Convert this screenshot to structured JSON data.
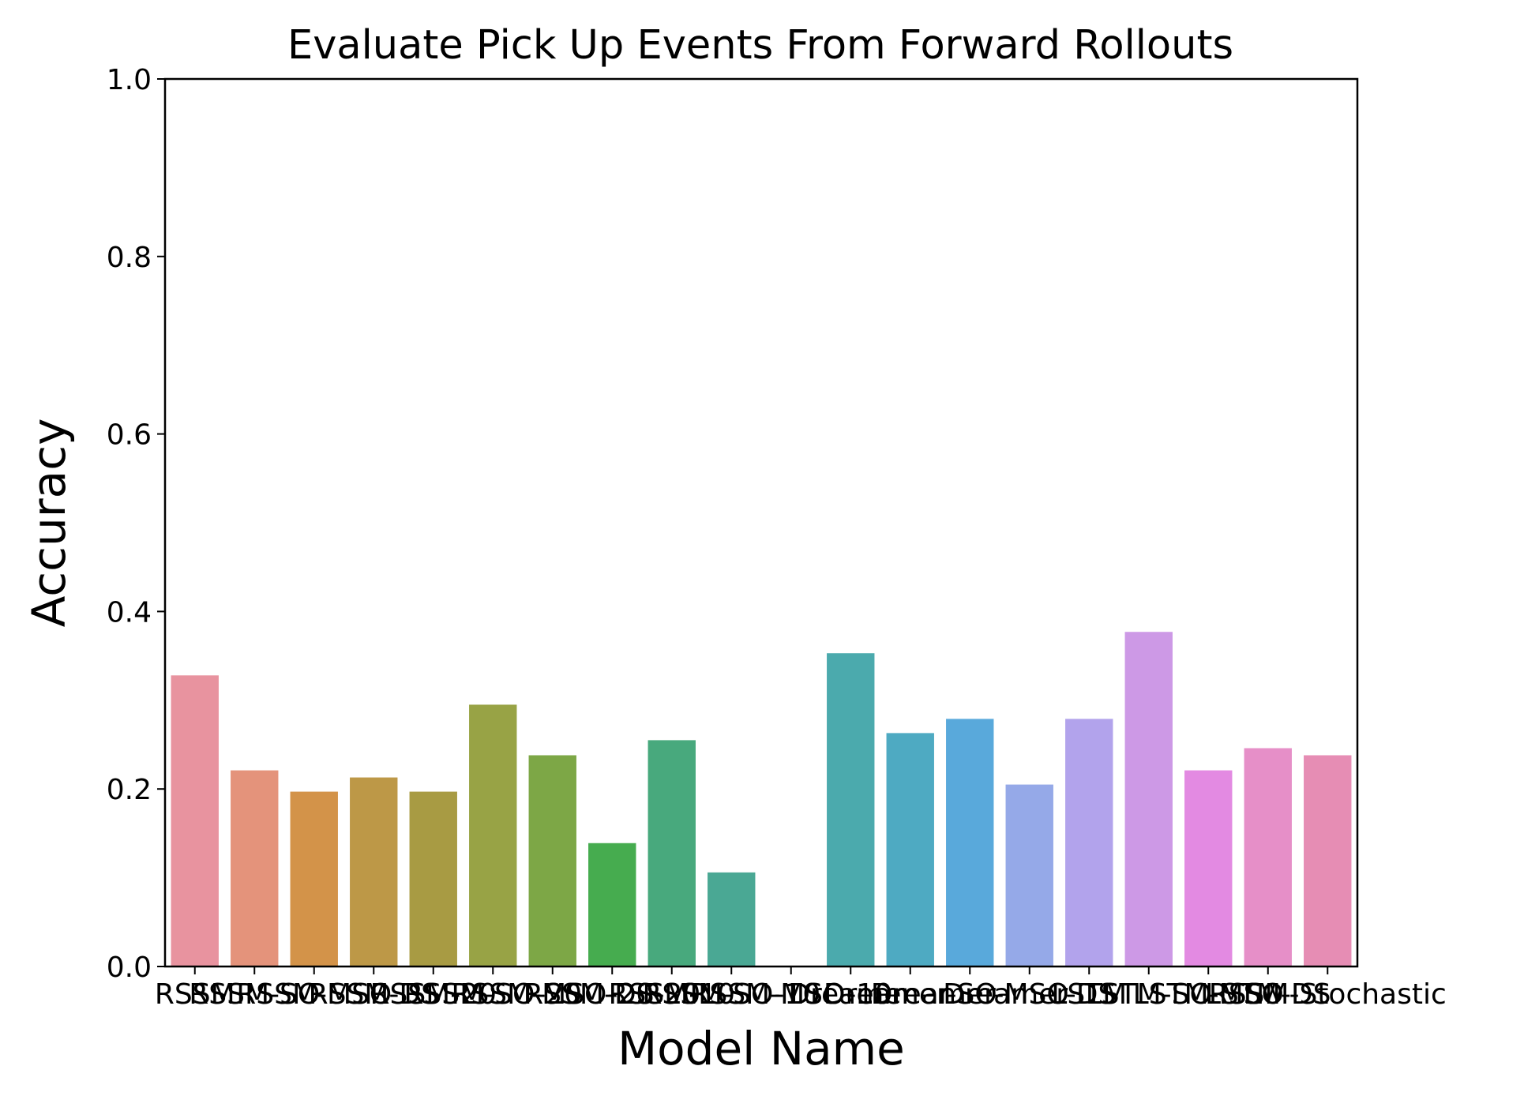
{
  "chart_data": {
    "type": "bar",
    "title": "Evaluate Pick Up Events From Forward Rollouts",
    "xlabel": "Model Name",
    "ylabel": "Accuracy",
    "ylim": [
      0,
      1.0
    ],
    "yticks": [
      "0.0",
      "0.2",
      "0.4",
      "0.6",
      "0.8",
      "1.0"
    ],
    "grid": false,
    "categories": [
      "RSSM",
      "RSSM-SO",
      "RSSM-MSO",
      "RSSM-DS",
      "RSSM-20",
      "RSSM-SO-20",
      "RSSM-MSO-20",
      "RSSM-DS-20",
      "RSSM-10",
      "RSSM-SO-10",
      "RSSM-MSO-10",
      "Dreamer",
      "Dreamer-SO",
      "Dreamer-MSO",
      "Dreamer-DS",
      "LSTM",
      "LSTM-SO",
      "LSTM-MSO",
      "LSTM-DS",
      "RSSM-Stochastic"
    ],
    "values": [
      0.328,
      0.221,
      0.197,
      0.213,
      0.197,
      0.295,
      0.238,
      0.139,
      0.255,
      0.106,
      0.0,
      0.353,
      0.263,
      0.279,
      0.205,
      0.279,
      0.377,
      0.221,
      0.246,
      0.238
    ],
    "colors": [
      "#e8939f",
      "#e4937b",
      "#d39349",
      "#bd9847",
      "#a89b43",
      "#98a345",
      "#7da746",
      "#46ac4f",
      "#48a97d",
      "#4aa894",
      "#4ba9a1",
      "#4baaad",
      "#4eaac2",
      "#59a9db",
      "#95a9e8",
      "#b2a3ec",
      "#cd99e6",
      "#e38ae2",
      "#e68fc8",
      "#e68db4"
    ]
  }
}
